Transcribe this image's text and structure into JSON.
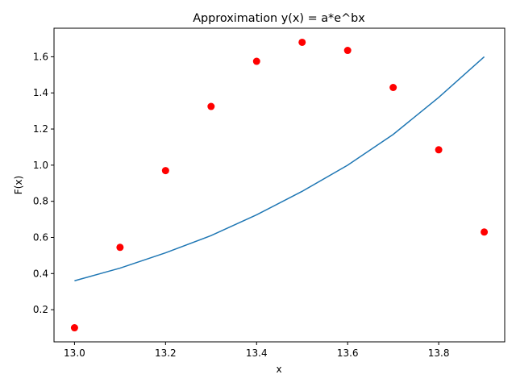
{
  "chart_data": {
    "type": "scatter",
    "title": "Approximation y(x) = a*e^bx",
    "xlabel": "x",
    "ylabel": "F(x)",
    "xlim": [
      12.955,
      13.945
    ],
    "ylim": [
      0.022,
      1.758
    ],
    "xticks": [
      "13.0",
      "13.2",
      "13.4",
      "13.6",
      "13.8"
    ],
    "yticks": [
      "0.2",
      "0.4",
      "0.6",
      "0.8",
      "1.0",
      "1.2",
      "1.4",
      "1.6"
    ],
    "grid": false,
    "series": [
      {
        "kind": "scatter",
        "color": "#ff0000",
        "x": [
          13.0,
          13.1,
          13.2,
          13.3,
          13.4,
          13.5,
          13.6,
          13.7,
          13.8,
          13.9
        ],
        "y": [
          0.1,
          0.545,
          0.97,
          1.325,
          1.575,
          1.68,
          1.635,
          1.43,
          1.085,
          0.63
        ]
      },
      {
        "kind": "line",
        "color": "#1f77b4",
        "x": [
          13.0,
          13.1,
          13.2,
          13.3,
          13.4,
          13.5,
          13.6,
          13.7,
          13.8,
          13.9
        ],
        "y": [
          0.36,
          0.43,
          0.515,
          0.61,
          0.725,
          0.855,
          1.0,
          1.17,
          1.375,
          1.6
        ]
      }
    ]
  }
}
